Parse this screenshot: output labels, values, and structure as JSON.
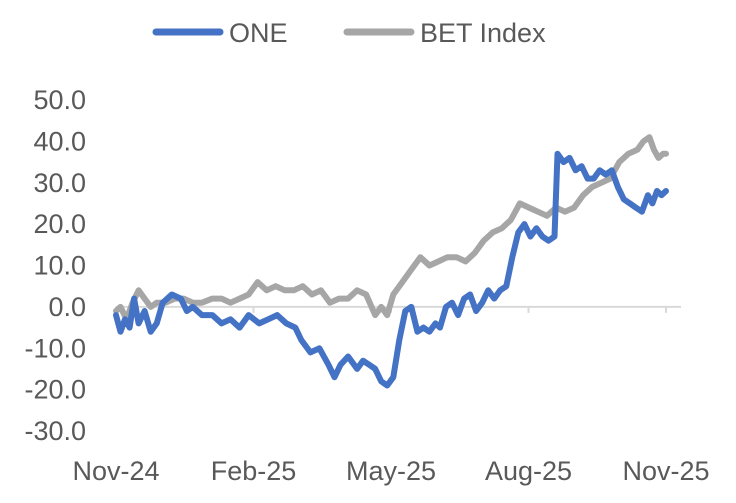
{
  "chart_data": {
    "type": "line",
    "title": "",
    "xlabel": "",
    "ylabel": "",
    "ylim": [
      -30,
      50
    ],
    "y_ticks": [
      50,
      40,
      30,
      20,
      10,
      0,
      -10,
      -20,
      -30
    ],
    "y_tick_labels": [
      "50.0",
      "40.0",
      "30.0",
      "20.0",
      "10.0",
      "0.0",
      "-10.0",
      "-20.0",
      "-30.0"
    ],
    "x_tick_labels": [
      "Nov-24",
      "Feb-25",
      "May-25",
      "Aug-25",
      "Nov-25"
    ],
    "x_range": [
      "2024-11-01",
      "2025-11-01"
    ],
    "grid": false,
    "legend_position": "top",
    "series": [
      {
        "name": "ONE",
        "color": "#4472C4",
        "points": [
          [
            "2024-11-01",
            -2
          ],
          [
            "2024-11-04",
            -6
          ],
          [
            "2024-11-07",
            -3
          ],
          [
            "2024-11-10",
            -5
          ],
          [
            "2024-11-13",
            2
          ],
          [
            "2024-11-16",
            -4
          ],
          [
            "2024-11-20",
            -1
          ],
          [
            "2024-11-24",
            -6
          ],
          [
            "2024-11-28",
            -4
          ],
          [
            "2024-12-02",
            1
          ],
          [
            "2024-12-08",
            3
          ],
          [
            "2024-12-14",
            2
          ],
          [
            "2024-12-18",
            -1
          ],
          [
            "2024-12-22",
            0
          ],
          [
            "2024-12-28",
            -2
          ],
          [
            "2025-01-04",
            -2
          ],
          [
            "2025-01-10",
            -4
          ],
          [
            "2025-01-16",
            -3
          ],
          [
            "2025-01-22",
            -5
          ],
          [
            "2025-01-28",
            -2
          ],
          [
            "2025-02-04",
            -4
          ],
          [
            "2025-02-10",
            -3
          ],
          [
            "2025-02-16",
            -2
          ],
          [
            "2025-02-22",
            -4
          ],
          [
            "2025-02-28",
            -5
          ],
          [
            "2025-03-04",
            -8
          ],
          [
            "2025-03-10",
            -11
          ],
          [
            "2025-03-16",
            -10
          ],
          [
            "2025-03-22",
            -14
          ],
          [
            "2025-03-26",
            -17
          ],
          [
            "2025-03-30",
            -14
          ],
          [
            "2025-04-04",
            -12
          ],
          [
            "2025-04-10",
            -15
          ],
          [
            "2025-04-14",
            -13
          ],
          [
            "2025-04-18",
            -14
          ],
          [
            "2025-04-22",
            -15
          ],
          [
            "2025-04-26",
            -18
          ],
          [
            "2025-04-30",
            -19
          ],
          [
            "2025-05-04",
            -17
          ],
          [
            "2025-05-08",
            -8
          ],
          [
            "2025-05-12",
            -1
          ],
          [
            "2025-05-16",
            0
          ],
          [
            "2025-05-20",
            -6
          ],
          [
            "2025-05-24",
            -5
          ],
          [
            "2025-05-28",
            -6
          ],
          [
            "2025-06-01",
            -4
          ],
          [
            "2025-06-04",
            -5
          ],
          [
            "2025-06-08",
            0
          ],
          [
            "2025-06-12",
            1
          ],
          [
            "2025-06-16",
            -2
          ],
          [
            "2025-06-20",
            2
          ],
          [
            "2025-06-24",
            3
          ],
          [
            "2025-06-28",
            -1
          ],
          [
            "2025-07-02",
            1
          ],
          [
            "2025-07-06",
            4
          ],
          [
            "2025-07-10",
            2
          ],
          [
            "2025-07-14",
            4
          ],
          [
            "2025-07-18",
            5
          ],
          [
            "2025-07-22",
            12
          ],
          [
            "2025-07-26",
            18
          ],
          [
            "2025-07-30",
            20
          ],
          [
            "2025-08-03",
            17
          ],
          [
            "2025-08-07",
            19
          ],
          [
            "2025-08-11",
            17
          ],
          [
            "2025-08-15",
            16
          ],
          [
            "2025-08-19",
            17
          ],
          [
            "2025-08-21",
            37
          ],
          [
            "2025-08-25",
            35
          ],
          [
            "2025-08-29",
            36
          ],
          [
            "2025-09-02",
            33
          ],
          [
            "2025-09-06",
            34
          ],
          [
            "2025-09-10",
            31
          ],
          [
            "2025-09-14",
            31
          ],
          [
            "2025-09-18",
            33
          ],
          [
            "2025-09-22",
            32
          ],
          [
            "2025-09-26",
            33
          ],
          [
            "2025-09-30",
            29
          ],
          [
            "2025-10-04",
            26
          ],
          [
            "2025-10-08",
            25
          ],
          [
            "2025-10-12",
            24
          ],
          [
            "2025-10-16",
            23
          ],
          [
            "2025-10-20",
            27
          ],
          [
            "2025-10-23",
            25
          ],
          [
            "2025-10-26",
            28
          ],
          [
            "2025-10-29",
            27
          ],
          [
            "2025-11-01",
            28
          ]
        ]
      },
      {
        "name": "BET Index",
        "color": "#A6A6A6",
        "points": [
          [
            "2024-11-01",
            -1
          ],
          [
            "2024-11-04",
            0
          ],
          [
            "2024-11-08",
            -3
          ],
          [
            "2024-11-12",
            1
          ],
          [
            "2024-11-16",
            4
          ],
          [
            "2024-11-20",
            2
          ],
          [
            "2024-11-24",
            0
          ],
          [
            "2024-11-28",
            1
          ],
          [
            "2024-12-04",
            1
          ],
          [
            "2024-12-10",
            2
          ],
          [
            "2024-12-16",
            2
          ],
          [
            "2024-12-22",
            1
          ],
          [
            "2024-12-28",
            1
          ],
          [
            "2025-01-04",
            2
          ],
          [
            "2025-01-10",
            2
          ],
          [
            "2025-01-16",
            1
          ],
          [
            "2025-01-22",
            2
          ],
          [
            "2025-01-28",
            3
          ],
          [
            "2025-02-03",
            6
          ],
          [
            "2025-02-09",
            4
          ],
          [
            "2025-02-15",
            5
          ],
          [
            "2025-02-21",
            4
          ],
          [
            "2025-02-27",
            4
          ],
          [
            "2025-03-05",
            5
          ],
          [
            "2025-03-11",
            3
          ],
          [
            "2025-03-17",
            4
          ],
          [
            "2025-03-23",
            1
          ],
          [
            "2025-03-29",
            2
          ],
          [
            "2025-04-04",
            2
          ],
          [
            "2025-04-10",
            4
          ],
          [
            "2025-04-16",
            3
          ],
          [
            "2025-04-22",
            -2
          ],
          [
            "2025-04-26",
            0
          ],
          [
            "2025-04-30",
            -2
          ],
          [
            "2025-05-04",
            3
          ],
          [
            "2025-05-10",
            6
          ],
          [
            "2025-05-16",
            9
          ],
          [
            "2025-05-22",
            12
          ],
          [
            "2025-05-28",
            10
          ],
          [
            "2025-06-03",
            11
          ],
          [
            "2025-06-09",
            12
          ],
          [
            "2025-06-15",
            12
          ],
          [
            "2025-06-21",
            11
          ],
          [
            "2025-06-27",
            13
          ],
          [
            "2025-07-03",
            16
          ],
          [
            "2025-07-09",
            18
          ],
          [
            "2025-07-15",
            19
          ],
          [
            "2025-07-21",
            21
          ],
          [
            "2025-07-27",
            25
          ],
          [
            "2025-08-02",
            24
          ],
          [
            "2025-08-08",
            23
          ],
          [
            "2025-08-14",
            22
          ],
          [
            "2025-08-20",
            24
          ],
          [
            "2025-08-26",
            23
          ],
          [
            "2025-09-01",
            24
          ],
          [
            "2025-09-07",
            27
          ],
          [
            "2025-09-13",
            29
          ],
          [
            "2025-09-19",
            30
          ],
          [
            "2025-09-25",
            31
          ],
          [
            "2025-10-01",
            35
          ],
          [
            "2025-10-07",
            37
          ],
          [
            "2025-10-13",
            38
          ],
          [
            "2025-10-17",
            40
          ],
          [
            "2025-10-21",
            41
          ],
          [
            "2025-10-24",
            38
          ],
          [
            "2025-10-27",
            36
          ],
          [
            "2025-10-30",
            37
          ],
          [
            "2025-11-01",
            37
          ]
        ]
      }
    ]
  }
}
